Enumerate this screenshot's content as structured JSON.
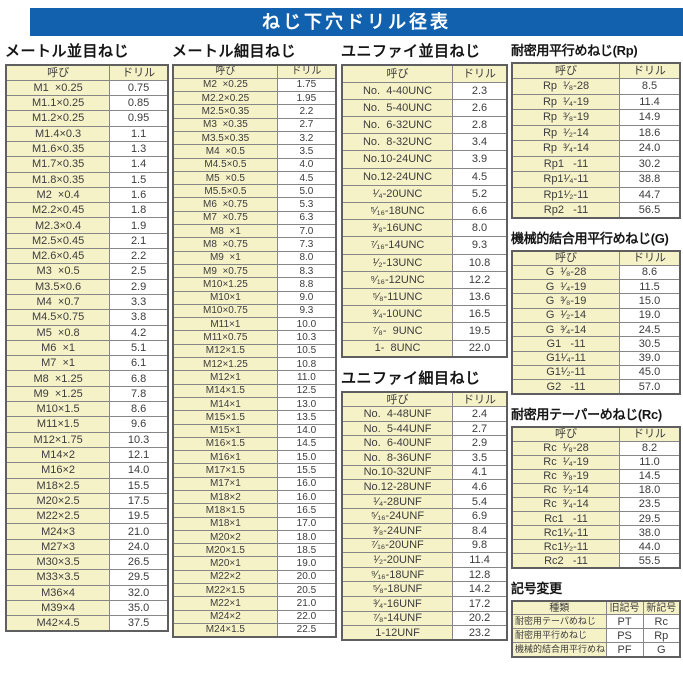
{
  "page_title": "ねじ下穴ドリル径表",
  "colors": {
    "header_bar": "#1261ae",
    "cell_cream": "#f6f2c8"
  },
  "col_headers": {
    "name": "呼び",
    "drill": "ドリル"
  },
  "metric_coarse": {
    "title": "メートル並目ねじ",
    "rows": [
      [
        "M1  ×0.25",
        "0.75"
      ],
      [
        "M1.1×0.25",
        "0.85"
      ],
      [
        "M1.2×0.25",
        "0.95"
      ],
      [
        "M1.4×0.3",
        "1.1"
      ],
      [
        "M1.6×0.35",
        "1.3"
      ],
      [
        "M1.7×0.35",
        "1.4"
      ],
      [
        "M1.8×0.35",
        "1.5"
      ],
      [
        "M2  ×0.4",
        "1.6"
      ],
      [
        "M2.2×0.45",
        "1.8"
      ],
      [
        "M2.3×0.4",
        "1.9"
      ],
      [
        "M2.5×0.45",
        "2.1"
      ],
      [
        "M2.6×0.45",
        "2.2"
      ],
      [
        "M3  ×0.5",
        "2.5"
      ],
      [
        "M3.5×0.6",
        "2.9"
      ],
      [
        "M4  ×0.7",
        "3.3"
      ],
      [
        "M4.5×0.75",
        "3.8"
      ],
      [
        "M5  ×0.8",
        "4.2"
      ],
      [
        "M6  ×1",
        "5.1"
      ],
      [
        "M7  ×1",
        "6.1"
      ],
      [
        "M8  ×1.25",
        "6.8"
      ],
      [
        "M9  ×1.25",
        "7.8"
      ],
      [
        "M10×1.5",
        "8.6"
      ],
      [
        "M11×1.5",
        "9.6"
      ],
      [
        "M12×1.75",
        "10.3"
      ],
      [
        "M14×2",
        "12.1"
      ],
      [
        "M16×2",
        "14.0"
      ],
      [
        "M18×2.5",
        "15.5"
      ],
      [
        "M20×2.5",
        "17.5"
      ],
      [
        "M22×2.5",
        "19.5"
      ],
      [
        "M24×3",
        "21.0"
      ],
      [
        "M27×3",
        "24.0"
      ],
      [
        "M30×3.5",
        "26.5"
      ],
      [
        "M33×3.5",
        "29.5"
      ],
      [
        "M36×4",
        "32.0"
      ],
      [
        "M39×4",
        "35.0"
      ],
      [
        "M42×4.5",
        "37.5"
      ]
    ]
  },
  "metric_fine": {
    "title": "メートル細目ねじ",
    "rows": [
      [
        "M2  ×0.25",
        "1.75"
      ],
      [
        "M2.2×0.25",
        "1.95"
      ],
      [
        "M2.5×0.35",
        "2.2"
      ],
      [
        "M3  ×0.35",
        "2.7"
      ],
      [
        "M3.5×0.35",
        "3.2"
      ],
      [
        "M4  ×0.5",
        "3.5"
      ],
      [
        "M4.5×0.5",
        "4.0"
      ],
      [
        "M5  ×0.5",
        "4.5"
      ],
      [
        "M5.5×0.5",
        "5.0"
      ],
      [
        "M6  ×0.75",
        "5.3"
      ],
      [
        "M7  ×0.75",
        "6.3"
      ],
      [
        "M8  ×1",
        "7.0"
      ],
      [
        "M8  ×0.75",
        "7.3"
      ],
      [
        "M9  ×1",
        "8.0"
      ],
      [
        "M9  ×0.75",
        "8.3"
      ],
      [
        "M10×1.25",
        "8.8"
      ],
      [
        "M10×1",
        "9.0"
      ],
      [
        "M10×0.75",
        "9.3"
      ],
      [
        "M11×1",
        "10.0"
      ],
      [
        "M11×0.75",
        "10.3"
      ],
      [
        "M12×1.5",
        "10.5"
      ],
      [
        "M12×1.25",
        "10.8"
      ],
      [
        "M12×1",
        "11.0"
      ],
      [
        "M14×1.5",
        "12.5"
      ],
      [
        "M14×1",
        "13.0"
      ],
      [
        "M15×1.5",
        "13.5"
      ],
      [
        "M15×1",
        "14.0"
      ],
      [
        "M16×1.5",
        "14.5"
      ],
      [
        "M16×1",
        "15.0"
      ],
      [
        "M17×1.5",
        "15.5"
      ],
      [
        "M17×1",
        "16.0"
      ],
      [
        "M18×2",
        "16.0"
      ],
      [
        "M18×1.5",
        "16.5"
      ],
      [
        "M18×1",
        "17.0"
      ],
      [
        "M20×2",
        "18.0"
      ],
      [
        "M20×1.5",
        "18.5"
      ],
      [
        "M20×1",
        "19.0"
      ],
      [
        "M22×2",
        "20.0"
      ],
      [
        "M22×1.5",
        "20.5"
      ],
      [
        "M22×1",
        "21.0"
      ],
      [
        "M24×2",
        "22.0"
      ],
      [
        "M24×1.5",
        "22.5"
      ]
    ]
  },
  "unified_coarse": {
    "title": "ユニファイ並目ねじ",
    "rows": [
      [
        "No.  4-40UNC",
        "2.3"
      ],
      [
        "No.  5-40UNC",
        "2.6"
      ],
      [
        "No.  6-32UNC",
        "2.8"
      ],
      [
        "No.  8-32UNC",
        "3.4"
      ],
      [
        "No.10-24UNC",
        "3.9"
      ],
      [
        "No.12-24UNC",
        "4.5"
      ],
      [
        "¹⁄₄-20UNC",
        "5.2"
      ],
      [
        "⁵⁄₁₆-18UNC",
        "6.6"
      ],
      [
        "³⁄₈-16UNC",
        "8.0"
      ],
      [
        "⁷⁄₁₆-14UNC",
        "9.3"
      ],
      [
        "¹⁄₂-13UNC",
        "10.8"
      ],
      [
        "⁹⁄₁₆-12UNC",
        "12.2"
      ],
      [
        "⁵⁄₈-11UNC",
        "13.6"
      ],
      [
        "³⁄₄-10UNC",
        "16.5"
      ],
      [
        "⁷⁄₈-  9UNC",
        "19.5"
      ],
      [
        "1-  8UNC",
        "22.0"
      ]
    ]
  },
  "unified_fine": {
    "title": "ユニファイ細目ねじ",
    "rows": [
      [
        "No.  4-48UNF",
        "2.4"
      ],
      [
        "No.  5-44UNF",
        "2.7"
      ],
      [
        "No.  6-40UNF",
        "2.9"
      ],
      [
        "No.  8-36UNF",
        "3.5"
      ],
      [
        "No.10-32UNF",
        "4.1"
      ],
      [
        "No.12-28UNF",
        "4.6"
      ],
      [
        "¹⁄₄-28UNF",
        "5.4"
      ],
      [
        "⁵⁄₁₆-24UNF",
        "6.9"
      ],
      [
        "³⁄₈-24UNF",
        "8.4"
      ],
      [
        "⁷⁄₁₆-20UNF",
        "9.8"
      ],
      [
        "¹⁄₂-20UNF",
        "11.4"
      ],
      [
        "⁹⁄₁₆-18UNF",
        "12.8"
      ],
      [
        "⁵⁄₈-18UNF",
        "14.2"
      ],
      [
        "³⁄₄-16UNF",
        "17.2"
      ],
      [
        "⁷⁄₈-14UNF",
        "20.2"
      ],
      [
        "1-12UNF",
        "23.2"
      ]
    ]
  },
  "rp": {
    "title": "耐密用平行めねじ(Rp)",
    "rows": [
      [
        "Rp  ¹⁄₈-28",
        "8.5"
      ],
      [
        "Rp  ¹⁄₄-19",
        "11.4"
      ],
      [
        "Rp  ³⁄₈-19",
        "14.9"
      ],
      [
        "Rp  ¹⁄₂-14",
        "18.6"
      ],
      [
        "Rp  ³⁄₄-14",
        "24.0"
      ],
      [
        "Rp1   -11",
        "30.2"
      ],
      [
        "Rp1¹⁄₄-11",
        "38.8"
      ],
      [
        "Rp1¹⁄₂-11",
        "44.7"
      ],
      [
        "Rp2   -11",
        "56.5"
      ]
    ]
  },
  "g": {
    "title": "機械的結合用平行めねじ(G)",
    "rows": [
      [
        "G  ¹⁄₈-28",
        "8.6"
      ],
      [
        "G  ¹⁄₄-19",
        "11.5"
      ],
      [
        "G  ³⁄₈-19",
        "15.0"
      ],
      [
        "G  ¹⁄₂-14",
        "19.0"
      ],
      [
        "G  ³⁄₄-14",
        "24.5"
      ],
      [
        "G1   -11",
        "30.5"
      ],
      [
        "G1¹⁄₄-11",
        "39.0"
      ],
      [
        "G1¹⁄₂-11",
        "45.0"
      ],
      [
        "G2   -11",
        "57.0"
      ]
    ]
  },
  "rc": {
    "title": "耐密用テーパーめねじ(Rc)",
    "rows": [
      [
        "Rc  ¹⁄₈-28",
        "8.2"
      ],
      [
        "Rc  ¹⁄₄-19",
        "11.0"
      ],
      [
        "Rc  ³⁄₈-19",
        "14.5"
      ],
      [
        "Rc  ¹⁄₂-14",
        "18.0"
      ],
      [
        "Rc  ³⁄₄-14",
        "23.5"
      ],
      [
        "Rc1   -11",
        "29.5"
      ],
      [
        "Rc1¹⁄₄-11",
        "38.0"
      ],
      [
        "Rc1¹⁄₂-11",
        "44.0"
      ],
      [
        "Rc2   -11",
        "55.5"
      ]
    ]
  },
  "symbol_change": {
    "title": "記号変更",
    "headers": [
      "種類",
      "旧記号",
      "新記号"
    ],
    "rows": [
      [
        "耐密用テーパめねじ",
        "PT",
        "Rc"
      ],
      [
        "耐密用平行めねじ",
        "PS",
        "Rp"
      ],
      [
        "機械的結合用平行めねじ",
        "PF",
        "G"
      ]
    ]
  }
}
